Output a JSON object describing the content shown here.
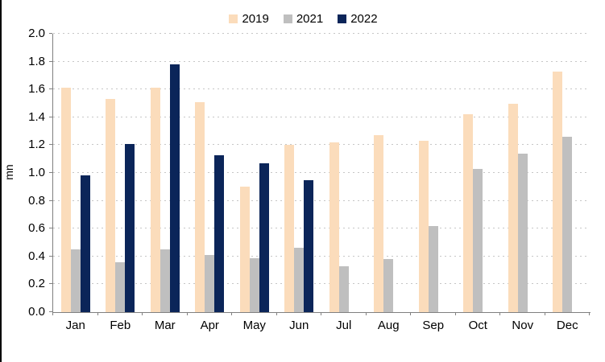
{
  "colors": {
    "series_2019": "#FBDCBB",
    "series_2021": "#BFBFBF",
    "series_2022": "#0B2559",
    "gridline": "#C6C6C6",
    "axis_line": "#808080",
    "text": "#000000",
    "left_border": "#000000"
  },
  "chart_data": {
    "type": "bar",
    "title": "",
    "xlabel": "",
    "ylabel": "mn",
    "categories": [
      "Jan",
      "Feb",
      "Mar",
      "Apr",
      "May",
      "Jun",
      "Jul",
      "Aug",
      "Sep",
      "Oct",
      "Nov",
      "Dec"
    ],
    "series": [
      {
        "name": "2019",
        "color": "#FBDCBB",
        "values": [
          1.61,
          1.53,
          1.61,
          1.51,
          0.9,
          1.2,
          1.22,
          1.27,
          1.23,
          1.42,
          1.5,
          1.73
        ]
      },
      {
        "name": "2021",
        "color": "#BFBFBF",
        "values": [
          0.45,
          0.36,
          0.45,
          0.41,
          0.39,
          0.46,
          0.33,
          0.38,
          0.62,
          1.03,
          1.14,
          1.26
        ]
      },
      {
        "name": "2022",
        "color": "#0B2559",
        "values": [
          0.98,
          1.21,
          1.78,
          1.13,
          1.07,
          0.95,
          null,
          null,
          null,
          null,
          null,
          null
        ]
      }
    ],
    "ylim": [
      0.0,
      2.0
    ],
    "ytick_step": 0.2,
    "yticks": [
      "0.0",
      "0.2",
      "0.4",
      "0.6",
      "0.8",
      "1.0",
      "1.2",
      "1.4",
      "1.6",
      "1.8",
      "2.0"
    ],
    "grid": "horizontal-dotted",
    "legend_position": "top-center"
  }
}
